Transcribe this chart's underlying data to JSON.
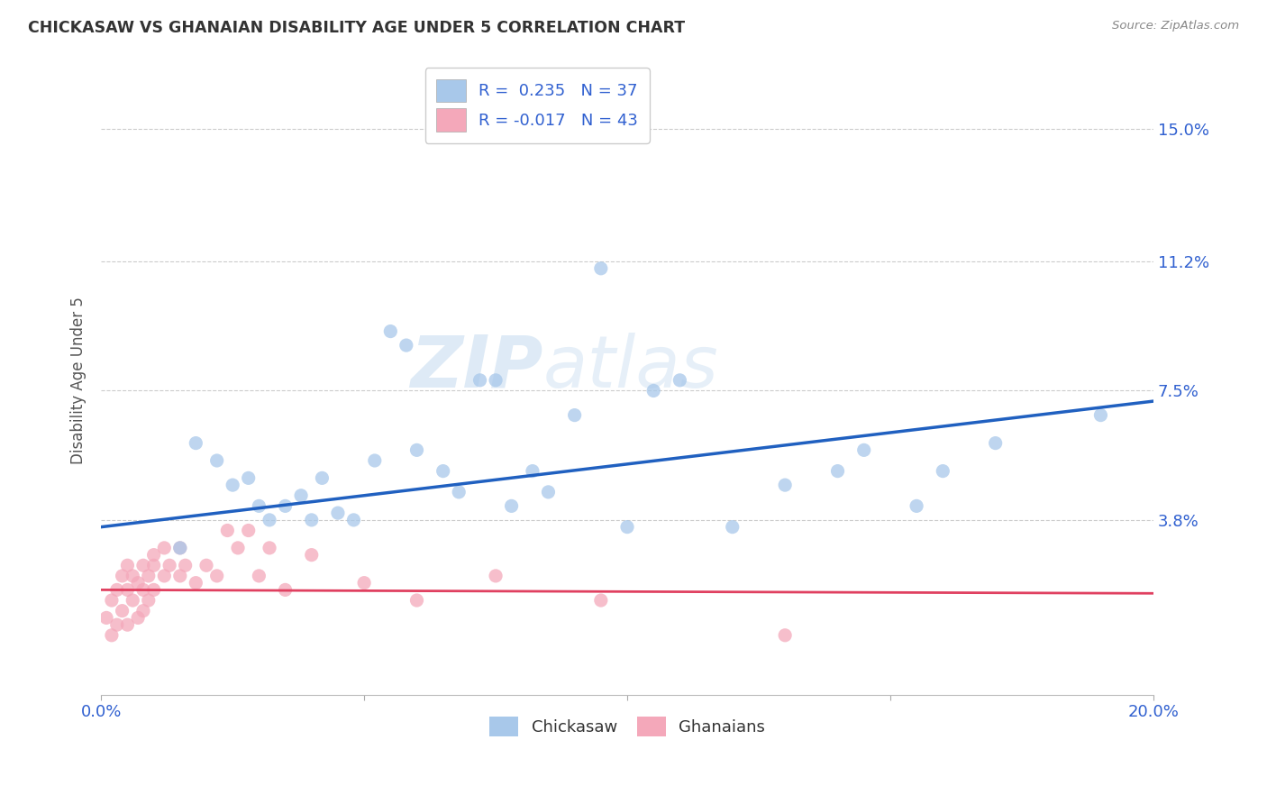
{
  "title": "CHICKASAW VS GHANAIAN DISABILITY AGE UNDER 5 CORRELATION CHART",
  "source": "Source: ZipAtlas.com",
  "ylabel": "Disability Age Under 5",
  "ytick_labels": [
    "3.8%",
    "7.5%",
    "11.2%",
    "15.0%"
  ],
  "ytick_values": [
    0.038,
    0.075,
    0.112,
    0.15
  ],
  "xlim": [
    0.0,
    0.2
  ],
  "ylim": [
    -0.012,
    0.168
  ],
  "chickasaw_color": "#a8c8ea",
  "ghanaian_color": "#f4a8ba",
  "line_blue": "#2060c0",
  "line_pink": "#e04060",
  "watermark_zip": "ZIP",
  "watermark_atlas": "atlas",
  "chickasaw_x": [
    0.015,
    0.018,
    0.022,
    0.025,
    0.028,
    0.03,
    0.032,
    0.035,
    0.038,
    0.04,
    0.042,
    0.045,
    0.048,
    0.052,
    0.055,
    0.058,
    0.06,
    0.065,
    0.068,
    0.072,
    0.075,
    0.078,
    0.082,
    0.085,
    0.09,
    0.095,
    0.1,
    0.105,
    0.11,
    0.12,
    0.13,
    0.14,
    0.145,
    0.155,
    0.16,
    0.17,
    0.19
  ],
  "chickasaw_y": [
    0.03,
    0.06,
    0.055,
    0.048,
    0.05,
    0.042,
    0.038,
    0.042,
    0.045,
    0.038,
    0.05,
    0.04,
    0.038,
    0.055,
    0.092,
    0.088,
    0.058,
    0.052,
    0.046,
    0.078,
    0.078,
    0.042,
    0.052,
    0.046,
    0.068,
    0.11,
    0.036,
    0.075,
    0.078,
    0.036,
    0.048,
    0.052,
    0.058,
    0.042,
    0.052,
    0.06,
    0.068
  ],
  "ghanaian_x": [
    0.001,
    0.002,
    0.002,
    0.003,
    0.003,
    0.004,
    0.004,
    0.005,
    0.005,
    0.005,
    0.006,
    0.006,
    0.007,
    0.007,
    0.008,
    0.008,
    0.008,
    0.009,
    0.009,
    0.01,
    0.01,
    0.01,
    0.012,
    0.012,
    0.013,
    0.015,
    0.015,
    0.016,
    0.018,
    0.02,
    0.022,
    0.024,
    0.026,
    0.028,
    0.03,
    0.032,
    0.035,
    0.04,
    0.05,
    0.06,
    0.075,
    0.095,
    0.13
  ],
  "ghanaian_y": [
    0.01,
    0.015,
    0.005,
    0.018,
    0.008,
    0.022,
    0.012,
    0.018,
    0.025,
    0.008,
    0.015,
    0.022,
    0.01,
    0.02,
    0.018,
    0.025,
    0.012,
    0.015,
    0.022,
    0.025,
    0.018,
    0.028,
    0.022,
    0.03,
    0.025,
    0.03,
    0.022,
    0.025,
    0.02,
    0.025,
    0.022,
    0.035,
    0.03,
    0.035,
    0.022,
    0.03,
    0.018,
    0.028,
    0.02,
    0.015,
    0.022,
    0.015,
    0.005
  ],
  "chickasaw_size": 120,
  "ghanaian_size": 120,
  "blue_line_x0": 0.0,
  "blue_line_y0": 0.036,
  "blue_line_x1": 0.2,
  "blue_line_y1": 0.072,
  "pink_line_x0": 0.0,
  "pink_line_y0": 0.018,
  "pink_line_x1": 0.2,
  "pink_line_y1": 0.017,
  "legend_blue_text": "R =  0.235   N = 37",
  "legend_pink_text": "R = -0.017   N = 43",
  "text_color_dark": "#333333",
  "text_color_blue": "#3060d0",
  "bottom_legend_chickasaw": "Chickasaw",
  "bottom_legend_ghanaians": "Ghanaians"
}
